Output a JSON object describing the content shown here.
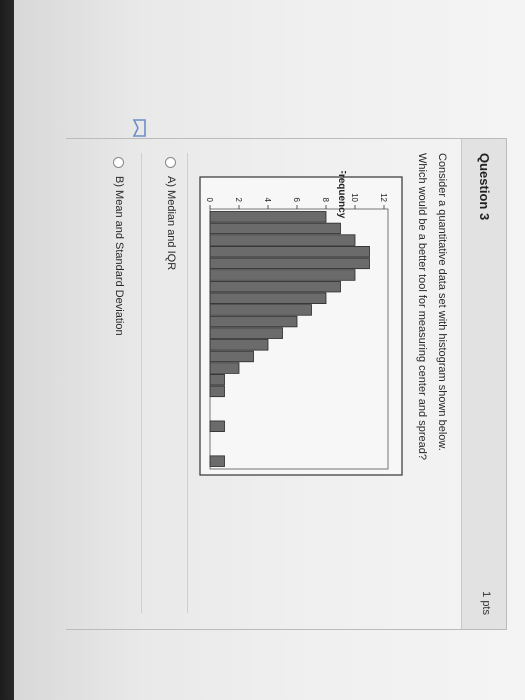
{
  "question": {
    "title": "Question 3",
    "points": "1 pts",
    "text_line1": "Consider a quantitative data set with histogram shown below.",
    "text_line2": "Which would be a better tool for measuring center and spread?"
  },
  "answers": [
    {
      "label": "A) Median and IQR"
    },
    {
      "label": "B) Mean and Standard Deviation"
    }
  ],
  "chart_data": {
    "type": "bar",
    "ylabel": "Frequency",
    "yticks": [
      0,
      2,
      4,
      6,
      8,
      10,
      12
    ],
    "ylim": [
      0,
      12
    ],
    "values": [
      8,
      9,
      10,
      11,
      11,
      10,
      9,
      8,
      7,
      6,
      5,
      4,
      3,
      2,
      1,
      1,
      0,
      0,
      1,
      0,
      0,
      1
    ]
  }
}
